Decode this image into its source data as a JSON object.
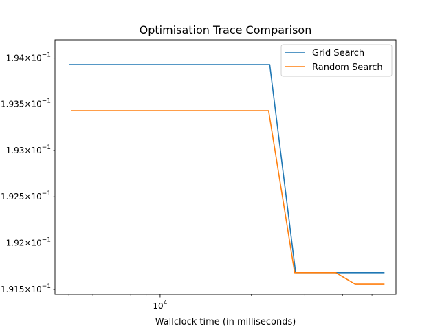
{
  "chart_data": {
    "type": "line",
    "title": "Optimisation Trace Comparison",
    "xlabel": "Wallclock time (in milliseconds)",
    "ylabel": "",
    "x_scale": "log",
    "y_scale": "log",
    "xlim": [
      4500,
      60000
    ],
    "ylim": [
      0.19145,
      0.1942
    ],
    "x_tick_labels": [
      {
        "value": 10000,
        "base": "10",
        "exp": "4"
      }
    ],
    "y_tick_labels": [
      {
        "value": 0.194,
        "mant": "1.94",
        "exp": "−1"
      },
      {
        "value": 0.1935,
        "mant": "1.935",
        "exp": "−1"
      },
      {
        "value": 0.193,
        "mant": "1.93",
        "exp": "−1"
      },
      {
        "value": 0.1925,
        "mant": "1.925",
        "exp": "−1"
      },
      {
        "value": 0.192,
        "mant": "1.92",
        "exp": "−1"
      },
      {
        "value": 0.1915,
        "mant": "1.915",
        "exp": "−1"
      }
    ],
    "legend_position": "top-right",
    "grid": false,
    "series": [
      {
        "name": "Grid Search",
        "color": "#1f77b4",
        "x": [
          5000,
          23000,
          28000,
          38000,
          55000
        ],
        "y": [
          0.19393,
          0.19393,
          0.19168,
          0.19168,
          0.19168
        ]
      },
      {
        "name": "Random Search",
        "color": "#ff7f0e",
        "x": [
          5100,
          22800,
          27800,
          38000,
          44000,
          55000
        ],
        "y": [
          0.19343,
          0.19343,
          0.19168,
          0.19168,
          0.19156,
          0.19156
        ]
      }
    ]
  }
}
